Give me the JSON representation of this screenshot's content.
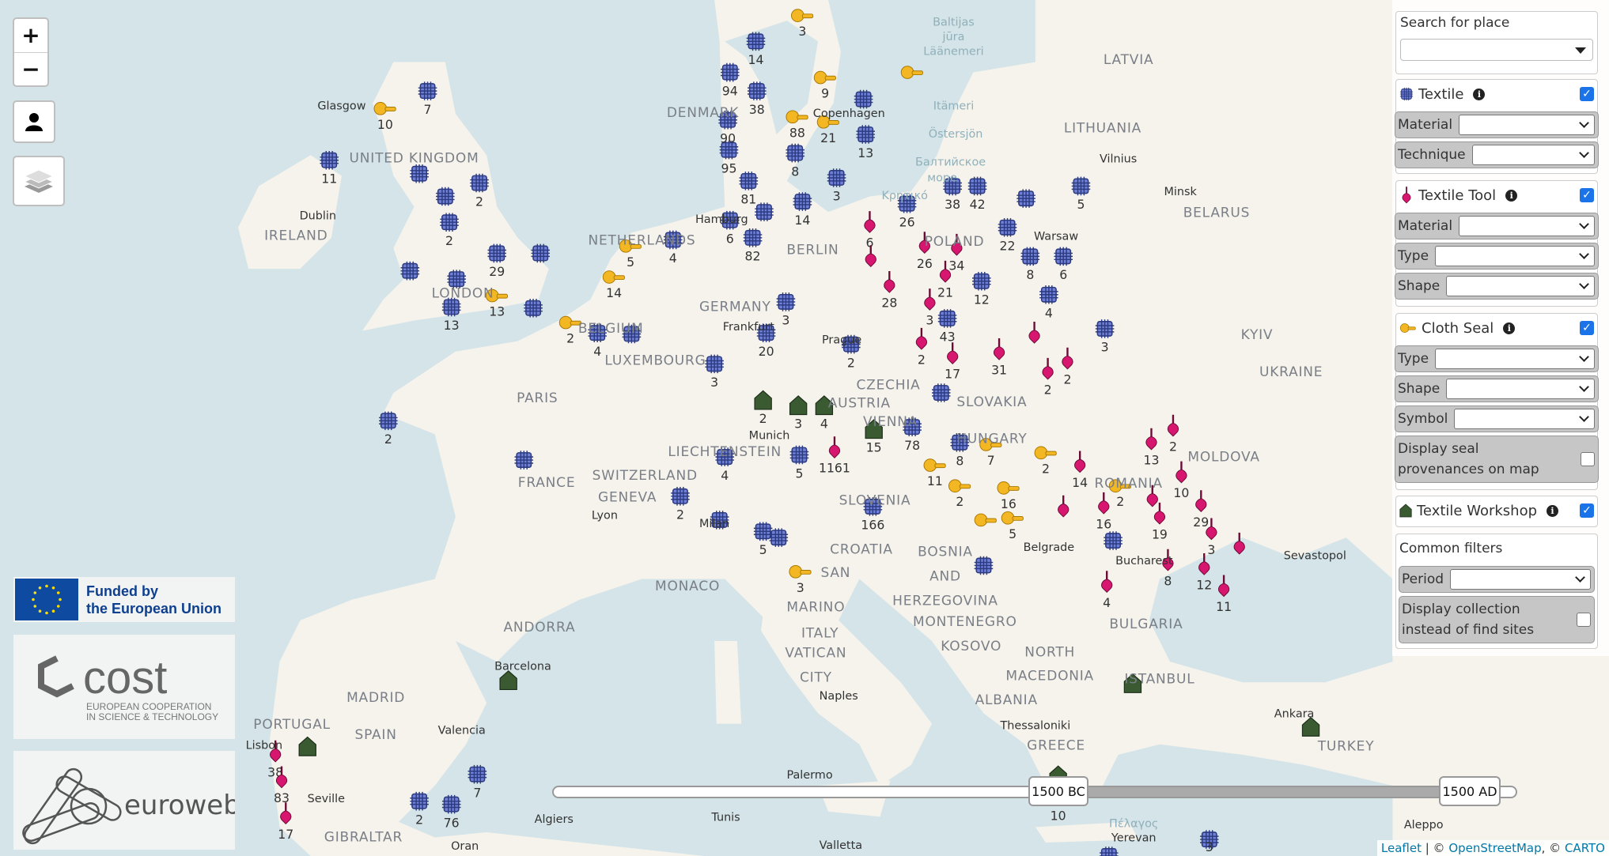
{
  "map_controls": {
    "zoom_in": "+",
    "zoom_out": "−",
    "user_icon": "user-icon",
    "layers_icon": "layers-icon"
  },
  "colors": {
    "water": "#d4e4e8",
    "land": "#f6f3ec",
    "textile": "#5b6ec9",
    "textile_tool": "#d6166f",
    "cloth_seal": "#f4b724",
    "workshop": "#3a5a32",
    "checkbox": "#1a73e8"
  },
  "places": [
    "Glasgow",
    "UNITED KINGDOM",
    "Dublin",
    "IRELAND",
    "LONDON",
    "NETHERLANDS",
    "BELGIUM",
    "LUXEMBOURG",
    "PARIS",
    "FRANCE",
    "GERMANY",
    "Hamburg",
    "BERLIN",
    "Frankfurt",
    "Munich",
    "Prague",
    "CZECHIA",
    "POLAND",
    "Warsaw",
    "LITHUANIA",
    "Vilnius",
    "LATVIA",
    "Minsk",
    "BELARUS",
    "KYIV",
    "UKRAINE",
    "MOLDOVA",
    "SLOVAKIA",
    "VIENNA",
    "AUSTRIA",
    "HUNGARY",
    "LIECHTENSTEIN",
    "SWITZERLAND",
    "GENEVA",
    "Lyon",
    "Milan",
    "SLOVENIA",
    "CROATIA",
    "ROMANIA",
    "Belgrade",
    "BOSNIA",
    "AND",
    "HERZEGOVINA",
    "Bucharest",
    "Sevastopol",
    "MONACO",
    "SAN",
    "MARINO",
    "ANDORRA",
    "ITALY",
    "VATICAN",
    "CITY",
    "Naples",
    "MONTENEGRO",
    "KOSOVO",
    "BULGARIA",
    "NORTH",
    "MACEDONIA",
    "ALBANIA",
    "Thessaloniki",
    "ISTANBUL",
    "Ankara",
    "TURKEY",
    "GREECE",
    "Barcelona",
    "MADRID",
    "PORTUGAL",
    "SPAIN",
    "Valencia",
    "Lisbon",
    "Seville",
    "GIBRALTAR",
    "Palermo",
    "Algiers",
    "Tunis",
    "Valletta",
    "Oran",
    "Aleppo",
    "Copenhagen",
    "DENMARK",
    "Baltijas",
    "jūra",
    "Läänemeri",
    "Itämeri",
    "Östersjön",
    "Балтийское",
    "море",
    "Κρητικό",
    "Πέλαγος",
    "Yerevan"
  ],
  "markers": {
    "textile": [
      "14",
      "94",
      "38",
      "90",
      "95",
      "81",
      "6",
      "82",
      "",
      "8",
      "14",
      "3",
      "",
      "13",
      "26",
      "38",
      "42",
      "",
      "5",
      "22",
      "8",
      "6",
      "12",
      "4",
      "43",
      "3",
      "",
      "78",
      "8",
      "5",
      "4",
      "2",
      "",
      "5",
      "",
      "166",
      "",
      "",
      "7",
      "2",
      "76",
      "3",
      "",
      "7",
      "11",
      "",
      "2",
      "",
      "2",
      "29",
      "",
      "",
      "",
      "13",
      "",
      "4",
      "",
      "2",
      "4",
      "",
      "20",
      "3",
      "3",
      "2"
    ],
    "textile_tool": [
      "6",
      "",
      "26",
      "34",
      "21",
      "28",
      "3",
      "2",
      "17",
      "31",
      "",
      "2",
      "2",
      "1161",
      "13",
      "2",
      "14",
      "10",
      "",
      "16",
      "",
      "19",
      "29",
      "3",
      "",
      "8",
      "12",
      "4",
      "11",
      "38",
      "83",
      "17"
    ],
    "cloth_seal": [
      "3",
      "9",
      "",
      "10",
      "88",
      "21",
      "5",
      "14",
      "13",
      "2",
      "11",
      "7",
      "2",
      "2",
      "16",
      "2",
      "",
      "5",
      "3"
    ],
    "workshop": [
      "2",
      "3",
      "4",
      "15",
      "",
      "",
      "",
      "",
      "10"
    ]
  },
  "panel": {
    "search": {
      "label": "Search for place",
      "value": ""
    },
    "textile": {
      "label": "Textile",
      "checked": true,
      "filters": [
        {
          "label": "Material",
          "value": ""
        },
        {
          "label": "Technique",
          "value": ""
        }
      ]
    },
    "textile_tool": {
      "label": "Textile Tool",
      "checked": true,
      "filters": [
        {
          "label": "Material",
          "value": ""
        },
        {
          "label": "Type",
          "value": ""
        },
        {
          "label": "Shape",
          "value": ""
        }
      ]
    },
    "cloth_seal": {
      "label": "Cloth Seal",
      "checked": true,
      "filters": [
        {
          "label": "Type",
          "value": ""
        },
        {
          "label": "Shape",
          "value": ""
        },
        {
          "label": "Symbol",
          "value": ""
        }
      ],
      "provenance_label": "Display seal provenances on map",
      "provenance_checked": false
    },
    "workshop": {
      "label": "Textile Workshop",
      "checked": true
    },
    "common": {
      "label": "Common filters",
      "period_label": "Period",
      "period_value": "",
      "collection_label": "Display collection instead of find sites",
      "collection_checked": false
    }
  },
  "logos": {
    "eu": "Funded by the European Union",
    "eu_line1": "Funded by",
    "eu_line2": "the European Union",
    "cost": "cost",
    "cost_sub1": "EUROPEAN COOPERATION",
    "cost_sub2": "IN SCIENCE & TECHNOLOGY",
    "euroweb": "euroweb"
  },
  "timeline": {
    "start": "1500 BC",
    "end": "1500 AD"
  },
  "attribution": {
    "leaflet": "Leaflet",
    "sep": " | © ",
    "osm": "OpenStreetMap",
    "sep2": ", © ",
    "carto": "CARTO"
  }
}
